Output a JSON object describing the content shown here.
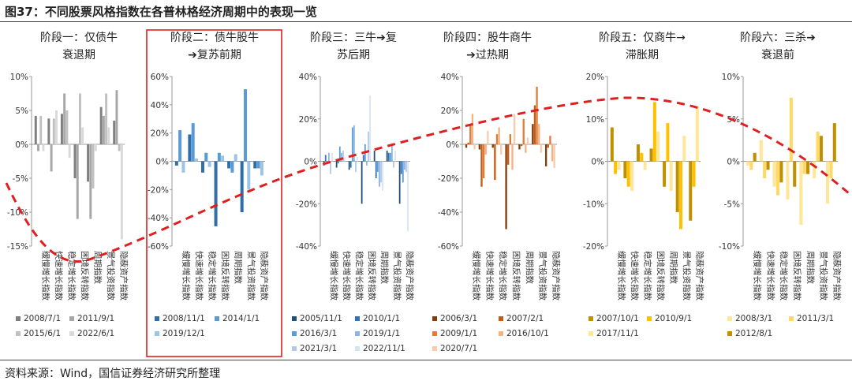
{
  "figure": {
    "title": "图37：不同股票风格指数在各普林格经济周期中的表现一览",
    "source": "资料来源：Wind，国信证券经济研究所整理"
  },
  "categories": [
    "缓慢增长指数",
    "快速增长指数",
    "稳定增长指数",
    "困境反转指数",
    "周期指数",
    "景气投资指数",
    "隐蔽资产指数"
  ],
  "chart_data": [
    {
      "type": "bar",
      "title_lines": [
        "阶段一：仅债牛",
        "衰退期"
      ],
      "ylim": [
        -15,
        10
      ],
      "yticks": [
        -15,
        -10,
        -5,
        0,
        5,
        10
      ],
      "unit": "%",
      "categories": [
        "缓慢增长指数",
        "快速增长指数",
        "稳定增长指数",
        "困境反转指数",
        "周期指数",
        "景气投资指数",
        "隐蔽资产指数"
      ],
      "highlighted": false,
      "series": [
        {
          "name": "2008/7/1",
          "color": "#7f7f7f",
          "values": [
            4.2,
            3.8,
            4.5,
            -5.0,
            -5.5,
            5.5,
            3.5
          ]
        },
        {
          "name": "2011/9/1",
          "color": "#a6a6a6",
          "values": [
            -1.0,
            -4.0,
            7.5,
            -11.0,
            -11.0,
            4.2,
            8.0
          ]
        },
        {
          "name": "2015/6/1",
          "color": "#c0c0c0",
          "values": [
            4.2,
            3.8,
            5.0,
            7.5,
            -6.5,
            7.5,
            -1.0
          ]
        },
        {
          "name": "2022/6/1",
          "color": "#d9d9d9",
          "values": [
            -1.0,
            5.0,
            -2.0,
            2.5,
            -1.0,
            2.5,
            -14.0
          ]
        }
      ]
    },
    {
      "type": "bar",
      "title_lines": [
        "阶段二：债牛股牛",
        "➔复苏前期"
      ],
      "ylim": [
        -60,
        60
      ],
      "yticks": [
        -60,
        -40,
        -20,
        0,
        20,
        40,
        60
      ],
      "unit": "%",
      "categories": [
        "缓慢增长指数",
        "快速增长指数",
        "稳定增长指数",
        "困境反转指数",
        "周期指数",
        "景气投资指数",
        "隐蔽资产指数"
      ],
      "highlighted": true,
      "series": [
        {
          "name": "2008/11/1",
          "color": "#2f6ea8",
          "values": [
            -3,
            19,
            -8,
            -46,
            -5,
            -36,
            -5
          ]
        },
        {
          "name": "2014/1/1",
          "color": "#5b9bd5",
          "values": [
            22,
            27,
            6,
            6,
            -8,
            51,
            -5
          ]
        },
        {
          "name": "2019/12/1",
          "color": "#9dc3e6",
          "values": [
            -8,
            2,
            -4,
            4,
            5,
            -20,
            -10
          ]
        }
      ]
    },
    {
      "type": "bar",
      "title_lines": [
        "阶段三：三牛➔复",
        "苏后期"
      ],
      "ylim": [
        -40,
        40
      ],
      "yticks": [
        -40,
        -20,
        0,
        20,
        40
      ],
      "unit": "%",
      "categories": [
        "缓慢增长指数",
        "快速增长指数",
        "稳定增长指数",
        "困境反转指数",
        "周期指数",
        "景气投资指数",
        "隐蔽资产指数"
      ],
      "highlighted": false,
      "series": [
        {
          "name": "2005/11/1",
          "color": "#1f4e79",
          "values": [
            -2,
            -3,
            -4,
            -20,
            5,
            5,
            -20
          ]
        },
        {
          "name": "2010/1/1",
          "color": "#2e75b6",
          "values": [
            3,
            -1,
            -3,
            3,
            -8,
            4,
            -6
          ]
        },
        {
          "name": "2016/3/1",
          "color": "#5b9bd5",
          "values": [
            0,
            7,
            16,
            8,
            -5,
            4,
            -10
          ]
        },
        {
          "name": "2019/1/1",
          "color": "#8eb4e3",
          "values": [
            4,
            4,
            17,
            -2,
            -12,
            8,
            -4
          ]
        },
        {
          "name": "2021/3/1",
          "color": "#b4c7e7",
          "values": [
            -6,
            5,
            -5,
            14,
            -10,
            -3,
            -5
          ]
        },
        {
          "name": "2022/11/1",
          "color": "#d6e4f2",
          "values": [
            4,
            2,
            2,
            31,
            -14,
            5,
            -33
          ]
        }
      ]
    },
    {
      "type": "bar",
      "title_lines": [
        "阶段四：股牛商牛",
        "➔过热期"
      ],
      "ylim": [
        -60,
        40
      ],
      "yticks": [
        -60,
        -40,
        -20,
        0,
        20,
        40
      ],
      "unit": "%",
      "categories": [
        "缓慢增长指数",
        "快速增长指数",
        "稳定增长指数",
        "困境反转指数",
        "周期指数",
        "景气投资指数",
        "隐蔽资产指数"
      ],
      "highlighted": false,
      "series": [
        {
          "name": "2006/3/1",
          "color": "#843c0c",
          "values": [
            -2,
            -3,
            -2,
            -50,
            -3,
            12,
            -13
          ]
        },
        {
          "name": "2007/2/1",
          "color": "#c55a11",
          "values": [
            1,
            -25,
            -21,
            -12,
            -1,
            23,
            -2
          ]
        },
        {
          "name": "2009/1/1",
          "color": "#e07b39",
          "values": [
            12,
            -20,
            6,
            6,
            15,
            34,
            5
          ]
        },
        {
          "name": "2016/10/1",
          "color": "#f4b183",
          "values": [
            18,
            -6,
            10,
            -15,
            -5,
            12,
            -10
          ]
        },
        {
          "name": "2020/7/1",
          "color": "#f8cbad",
          "values": [
            -3,
            8,
            -6,
            18,
            4,
            -5,
            -14
          ]
        }
      ]
    },
    {
      "type": "bar",
      "title_lines": [
        "阶段五：仅商牛→",
        "滞胀期"
      ],
      "ylim": [
        -20,
        20
      ],
      "yticks": [
        -20,
        -10,
        0,
        10,
        20
      ],
      "unit": "%",
      "categories": [
        "缓慢增长指数",
        "快速增长指数",
        "稳定增长指数",
        "困境反转指数",
        "周期指数",
        "景气投资指数",
        "隐蔽资产指数"
      ],
      "highlighted": false,
      "series": [
        {
          "name": "2007/10/1",
          "color": "#bf9000",
          "values": [
            8,
            -4,
            4,
            3,
            -6,
            -12,
            -14
          ]
        },
        {
          "name": "2010/9/1",
          "color": "#ffc000",
          "values": [
            -3,
            -6,
            2,
            14,
            9,
            -16,
            -6
          ]
        },
        {
          "name": "2017/11/1",
          "color": "#ffe699",
          "values": [
            -2,
            -7,
            -2,
            7,
            -7,
            6,
            13
          ]
        }
      ]
    },
    {
      "type": "bar",
      "title_lines": [
        "阶段六：三杀➔",
        "衰退前"
      ],
      "ylim": [
        -10,
        10
      ],
      "yticks": [
        -10,
        -5,
        0,
        5,
        10
      ],
      "unit": "%",
      "categories": [
        "缓慢增长指数",
        "快速增长指数",
        "稳定增长指数",
        "困境反转指数",
        "周期指数",
        "景气投资指数",
        "隐蔽资产指数"
      ],
      "highlighted": false,
      "series": [
        {
          "name": "2008/3/1",
          "color": "#ffe699",
          "values": [
            -0.5,
            2.5,
            -3.0,
            -4.5,
            -7.5,
            -2.0,
            -5.0
          ]
        },
        {
          "name": "2011/3/1",
          "color": "#ffd966",
          "values": [
            -1.0,
            -2.0,
            -4.0,
            7.5,
            -1.5,
            3.5,
            -2.0
          ]
        },
        {
          "name": "2012/8/1",
          "color": "#bf9000",
          "values": [
            1.0,
            -1.0,
            -2.5,
            -3.0,
            -1.5,
            3.0,
            4.5
          ]
        }
      ]
    }
  ]
}
